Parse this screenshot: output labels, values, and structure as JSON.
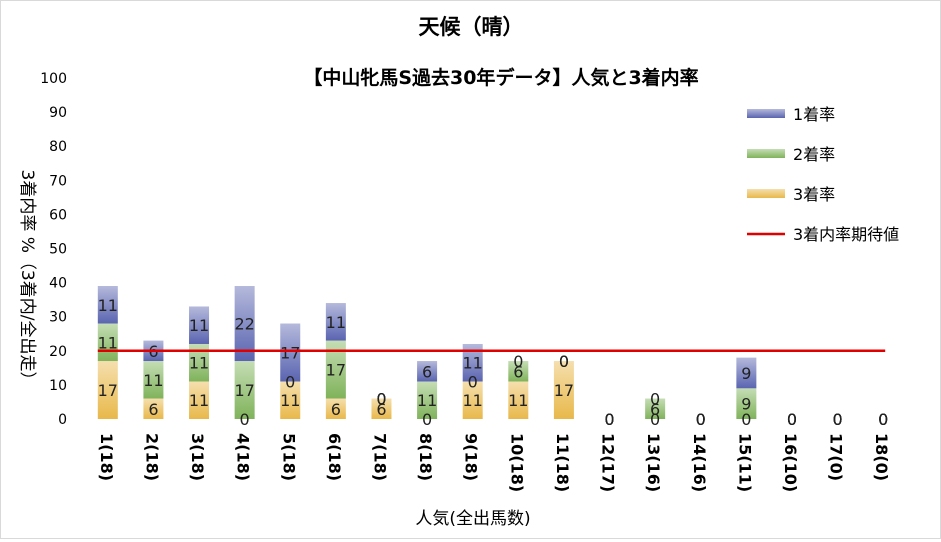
{
  "chart_data": {
    "type": "bar",
    "stacked": true,
    "title": "天候（晴）",
    "subtitle": "【中山牝馬S過去30年データ】人気と3着内率",
    "xlabel": "人気(全出馬数)",
    "ylabel": "3着内率 %（3着内/全出走）",
    "ylim": [
      0,
      100
    ],
    "yticks": [
      0,
      10,
      20,
      30,
      40,
      50,
      60,
      70,
      80,
      90,
      100
    ],
    "grid": false,
    "legend_position": "top-right",
    "categories": [
      "1(18)",
      "2(18)",
      "3(18)",
      "4(18)",
      "5(18)",
      "6(18)",
      "7(18)",
      "8(18)",
      "9(18)",
      "10(18)",
      "11(18)",
      "12(17)",
      "13(16)",
      "14(16)",
      "15(11)",
      "16(10)",
      "17(0)",
      "18(0)"
    ],
    "series": [
      {
        "name": "3着率",
        "color": "#e8b84a",
        "values": [
          17,
          6,
          11,
          0,
          11,
          6,
          6,
          0,
          11,
          11,
          17,
          0,
          0,
          0,
          0,
          0,
          0,
          0
        ]
      },
      {
        "name": "2着率",
        "color": "#7fb35a",
        "values": [
          11,
          11,
          11,
          17,
          0,
          17,
          0,
          11,
          0,
          6,
          0,
          0,
          6,
          0,
          9,
          0,
          0,
          0
        ]
      },
      {
        "name": "1着率",
        "color": "#5a64b0",
        "values": [
          11,
          6,
          11,
          22,
          17,
          11,
          0,
          6,
          11,
          0,
          0,
          0,
          0,
          0,
          9,
          0,
          0,
          0
        ]
      }
    ],
    "reference_line": {
      "name": "3着内率期待値",
      "value": 20,
      "color": "#e00000"
    }
  }
}
